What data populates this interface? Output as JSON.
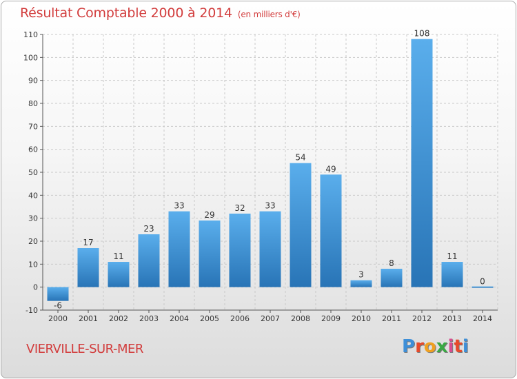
{
  "header": {
    "title": "Résultat Comptable 2000 à 2014",
    "unit": "(en milliers d'€)"
  },
  "footer": {
    "commune": "VIERVILLE-SUR-MER",
    "logo_letters": [
      "P",
      "r",
      "o",
      "x",
      "i",
      "t",
      "i"
    ],
    "logo_colors": [
      "#3e8fd8",
      "#e84a2a",
      "#f0a020",
      "#3aa843",
      "#d94c8f",
      "#e84a2a",
      "#3e8fd8"
    ]
  },
  "chart_data": {
    "type": "bar",
    "title": "Résultat Comptable 2000 à 2014",
    "categories": [
      "2000",
      "2001",
      "2002",
      "2003",
      "2004",
      "2005",
      "2006",
      "2007",
      "2008",
      "2009",
      "2010",
      "2011",
      "2012",
      "2013",
      "2014"
    ],
    "values": [
      -6,
      17,
      11,
      23,
      33,
      29,
      32,
      33,
      54,
      49,
      3,
      8,
      108,
      11,
      0
    ],
    "data_labels": [
      "-6",
      "17",
      "11",
      "23",
      "33",
      "29",
      "32",
      "33",
      "54",
      "49",
      "3",
      "8",
      "108",
      "11",
      "0"
    ],
    "ylim": [
      -10,
      110
    ],
    "yticks": [
      -10,
      0,
      10,
      20,
      30,
      40,
      50,
      60,
      70,
      80,
      90,
      100,
      110
    ],
    "grid": true,
    "bar_color": "#3a8fd6",
    "bar_color_light": "#5aaeec",
    "bar_color_dark": "#2874b6",
    "grid_color": "#c9c9c9"
  }
}
